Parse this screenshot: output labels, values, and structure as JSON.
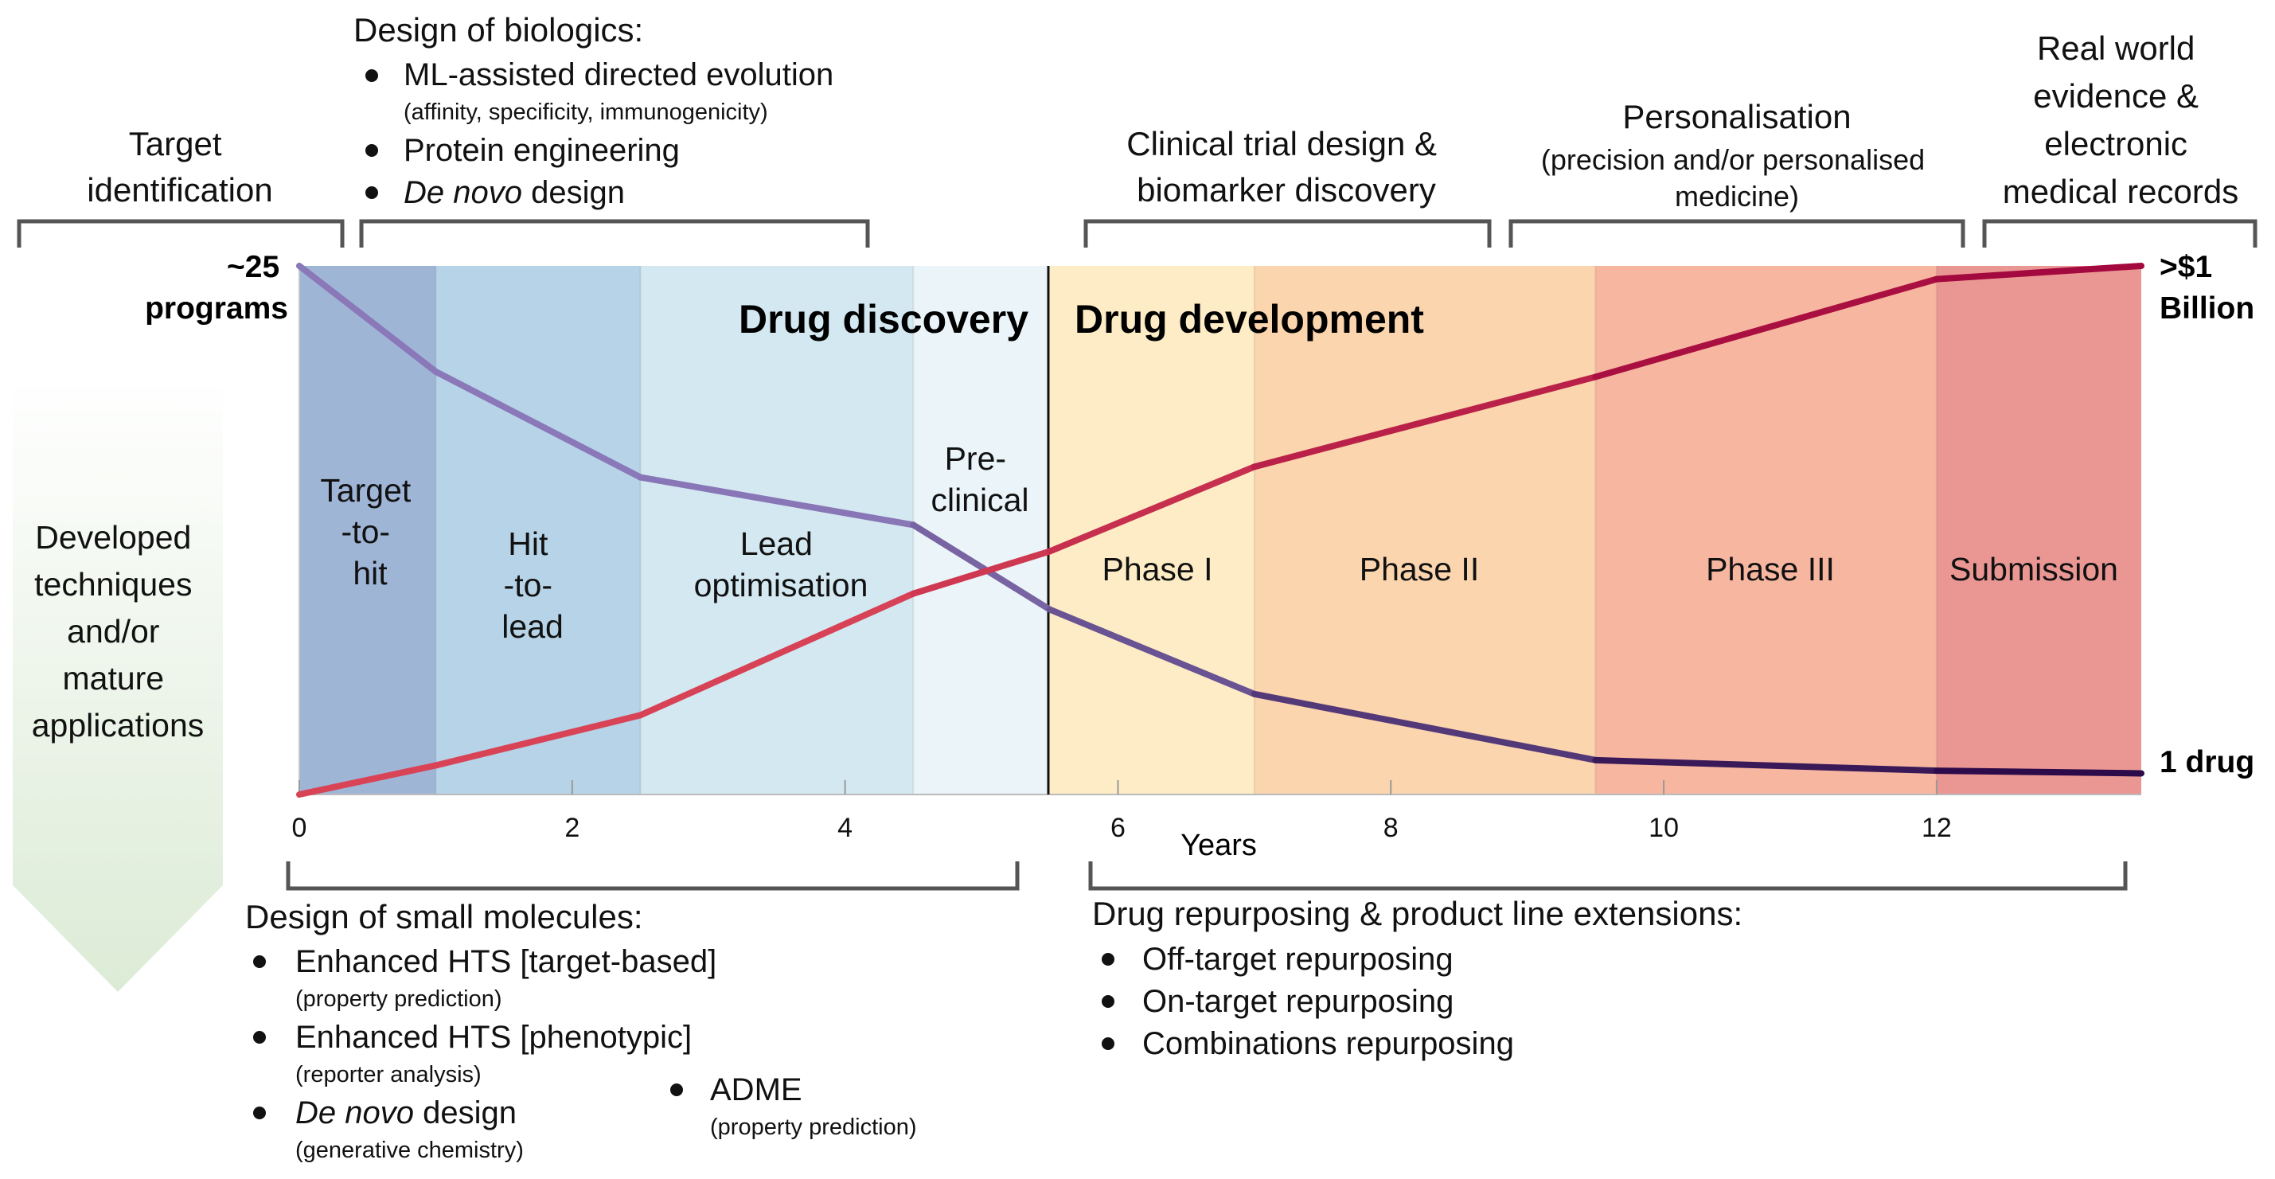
{
  "colors": {
    "stage_target_to_hit": "#9fb5d6",
    "stage_hit_to_lead": "#b6d3e7",
    "stage_lead_optimisation": "#d3e8f1",
    "stage_preclinical": "#ebf5f9",
    "stage_phase1": "#fdecc5",
    "stage_phase2": "#fbd5ae",
    "stage_phase3": "#f6b6a0",
    "stage_submission": "#ea9794",
    "programs_line_light": "#8a78b8",
    "programs_line_dark": "#2d0b4a",
    "cost_line_light": "#d94356",
    "cost_line_dark": "#a3083e",
    "arrow_top": "#ffffff",
    "arrow_bottom": "#dcebd6"
  },
  "top_annotations": {
    "target_identification": [
      "Target",
      "identification"
    ],
    "biologics": {
      "heading": "Design of biologics:",
      "items": [
        {
          "text": "ML-assisted directed evolution",
          "sub": "(affinity, specificity, immunogenicity)"
        },
        {
          "text": "Protein engineering",
          "sub": ""
        },
        {
          "italic": "De novo",
          "text": " design",
          "sub": ""
        }
      ]
    },
    "clinical_trial": [
      "Clinical trial design &",
      "biomarker discovery"
    ],
    "personalisation": {
      "title": "Personalisation",
      "sub": [
        "(precision and/or personalised",
        "medicine)"
      ]
    },
    "real_world": [
      "Real world",
      "evidence &",
      "electronic",
      "medical records"
    ]
  },
  "left_labels": {
    "programs": [
      "~25",
      "programs"
    ],
    "arrow_text": [
      "Developed",
      "techniques",
      "and/or",
      "mature",
      "applications"
    ]
  },
  "right_labels": {
    "cost": [
      ">$1",
      "Billion"
    ],
    "drug": "1 drug"
  },
  "section_titles": {
    "discovery": "Drug discovery",
    "development": "Drug development"
  },
  "stages": {
    "target_to_hit": [
      "Target",
      "-to-",
      "hit"
    ],
    "hit_to_lead": [
      "Hit",
      "-to-",
      "lead"
    ],
    "lead_optimisation": [
      "Lead",
      "optimisation"
    ],
    "preclinical": [
      "Pre-",
      "clinical"
    ],
    "phase1": "Phase I",
    "phase2": "Phase II",
    "phase3": "Phase III",
    "submission": "Submission"
  },
  "chart_data": {
    "type": "line",
    "xlabel": "Years",
    "xlim": [
      0,
      13.5
    ],
    "x_ticks": [
      0,
      2,
      4,
      6,
      8,
      10,
      12
    ],
    "stage_boundaries": [
      0,
      1,
      2.5,
      4.5,
      5.5,
      7,
      9.5,
      12,
      13.5
    ],
    "series": [
      {
        "key": "programs",
        "x": [
          0,
          1,
          2.5,
          4.5,
          5.5,
          7,
          9.5,
          12,
          13.5
        ],
        "y": [
          1.0,
          0.8,
          0.6,
          0.51,
          0.35,
          0.19,
          0.065,
          0.045,
          0.04
        ]
      },
      {
        "key": "cost",
        "x": [
          0,
          1,
          2.5,
          4.5,
          5.5,
          7,
          9.5,
          12,
          13.5
        ],
        "y": [
          0.0,
          0.055,
          0.15,
          0.38,
          0.46,
          0.62,
          0.79,
          0.975,
          1.0
        ]
      }
    ]
  },
  "bottom_annotations": {
    "small_molecules": {
      "heading": "Design of small molecules:",
      "items": [
        {
          "text": "Enhanced HTS [target-based]",
          "sub": "(property prediction)"
        },
        {
          "text": "Enhanced HTS [phenotypic]",
          "sub": "(reporter analysis)"
        },
        {
          "italic": "De novo",
          "text": " design",
          "sub": "(generative chemistry)"
        }
      ],
      "adme": {
        "text": "ADME",
        "sub": "(property prediction)"
      }
    },
    "repurposing": {
      "heading": "Drug repurposing & product line extensions:",
      "items": [
        "Off-target repurposing",
        "On-target repurposing",
        "Combinations repurposing"
      ]
    }
  }
}
